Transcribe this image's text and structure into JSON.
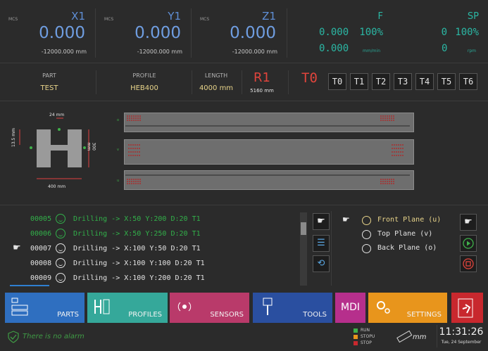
{
  "axes": [
    {
      "tag": "MCS",
      "name": "X1",
      "value": "0.000",
      "limit": "-12000.000 mm"
    },
    {
      "tag": "MCS",
      "name": "Y1",
      "value": "0.000",
      "limit": "-12000.000 mm"
    },
    {
      "tag": "MCS",
      "name": "Z1",
      "value": "0.000",
      "limit": "-12000.000 mm"
    }
  ],
  "feed": {
    "label": "F",
    "value": "0.000",
    "percent": "100%",
    "actual": "0.000",
    "unit": "mm/min"
  },
  "spindle": {
    "label": "SP",
    "value": "0",
    "percent": "100%",
    "actual": "0",
    "unit": "rpm"
  },
  "part_info": {
    "part_label": "PART",
    "part": "TEST",
    "profile_label": "PROFILE",
    "profile": "HEB400",
    "length_label": "LENGTH",
    "length": "4000 mm",
    "row": "R1",
    "row_length": "5160 mm",
    "active_tool": "T0"
  },
  "tools": [
    "T0",
    "T1",
    "T2",
    "T3",
    "T4",
    "T5",
    "T6"
  ],
  "profile_dims": {
    "web": "24 mm",
    "flange": "13.5 mm",
    "height": "300 mm",
    "width": "400 mm"
  },
  "plane_markers": [
    "o",
    "v",
    "u"
  ],
  "program": [
    {
      "num": "00005",
      "cmd": "Drilling -> X:50 Y:200 D:20 T1",
      "state": "done",
      "pointer": ""
    },
    {
      "num": "00006",
      "cmd": "Drilling -> X:50 Y:250 D:20 T1",
      "state": "done",
      "pointer": ""
    },
    {
      "num": "00007",
      "cmd": "Drilling -> X:100 Y:50 D:20 T1",
      "state": "current",
      "pointer": "☛"
    },
    {
      "num": "00008",
      "cmd": "Drilling -> X:100 Y:100 D:20 T1",
      "state": "pending",
      "pointer": ""
    },
    {
      "num": "00009",
      "cmd": "Drilling -> X:100 Y:200 D:20 T1",
      "state": "pending",
      "pointer": ""
    }
  ],
  "planes": [
    {
      "label": "Front Plane (u)",
      "active": true,
      "pointer": "☛"
    },
    {
      "label": "Top Plane (v)",
      "active": false,
      "pointer": ""
    },
    {
      "label": "Back Plane (o)",
      "active": false,
      "pointer": ""
    }
  ],
  "menu": {
    "parts": "PARTS",
    "profiles": "PROFILES",
    "sensors": "SENSORS",
    "tools": "TOOLS",
    "mdi": "MDI",
    "settings": "SETTINGS"
  },
  "status": {
    "alarm": "There is no alarm",
    "run": "RUN",
    "stopu": "STOPU",
    "stop": "STOP",
    "units": "mm",
    "time": "11:31:26",
    "date": "Tue, 24 September"
  },
  "colors": {
    "parts": "#2f6fc0",
    "profiles": "#35a89a",
    "sensors": "#b93a6a",
    "tools": "#2a4fa0",
    "mdi": "#b62f8c",
    "settings": "#e8951c",
    "exit": "#c8282e",
    "axis": "#6f9de0",
    "feed": "#2bb7a4",
    "done": "#32b04a",
    "tool_active": "#e0443c"
  }
}
